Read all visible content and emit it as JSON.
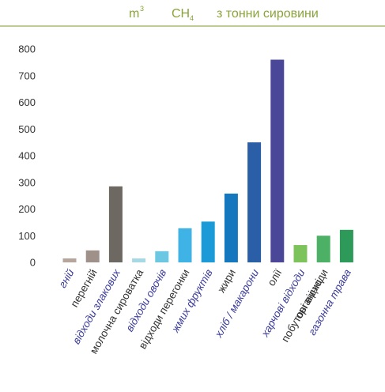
{
  "chart_data": {
    "type": "bar",
    "title": {
      "unit": "m",
      "unit_sup": "3",
      "gas": "CH",
      "gas_sub": "4",
      "text": "з тонни сировини"
    },
    "xlabel": "",
    "ylabel": "",
    "ylim": [
      0,
      800
    ],
    "yticks": [
      "800",
      "700",
      "600",
      "500",
      "400",
      "300",
      "200",
      "100",
      "0"
    ],
    "grid": false,
    "categories": [
      {
        "lines": [
          "гній"
        ],
        "value": 15,
        "color": "#b5a59b",
        "label_color": "#3b3b9a",
        "label_style": "italic"
      },
      {
        "lines": [
          "перегній"
        ],
        "value": 45,
        "color": "#9f918a",
        "label_color": "#333333",
        "label_style": "normal"
      },
      {
        "lines": [
          "відходи злакових"
        ],
        "value": 285,
        "color": "#6e6862",
        "label_color": "#3b3b9a",
        "label_style": "italic"
      },
      {
        "lines": [
          "молочна сироватка"
        ],
        "value": 15,
        "color": "#a7d8e6",
        "label_color": "#333333",
        "label_style": "normal"
      },
      {
        "lines": [
          "відходи овочів"
        ],
        "value": 42,
        "color": "#6cc8e2",
        "label_color": "#3b3b9a",
        "label_style": "italic"
      },
      {
        "lines": [
          "відходи перегонки"
        ],
        "value": 128,
        "color": "#3fb3e5",
        "label_color": "#333333",
        "label_style": "normal"
      },
      {
        "lines": [
          "жмих фруктів"
        ],
        "value": 153,
        "color": "#1a9bd7",
        "label_color": "#3b3b9a",
        "label_style": "italic"
      },
      {
        "lines": [
          "жири"
        ],
        "value": 258,
        "color": "#1577bd",
        "label_color": "#333333",
        "label_style": "normal"
      },
      {
        "lines": [
          "хліб / макарони"
        ],
        "value": 450,
        "color": "#2a5fa8",
        "label_color": "#3b3b9a",
        "label_style": "italic"
      },
      {
        "lines": [
          "олії"
        ],
        "value": 760,
        "color": "#4a4798",
        "label_color": "#333333",
        "label_style": "normal"
      },
      {
        "lines": [
          "харчові відходи"
        ],
        "value": 65,
        "color": "#7dc35b",
        "label_color": "#3b3b9a",
        "label_style": "italic"
      },
      {
        "lines": [
          "органічні",
          "побутові відходи"
        ],
        "value": 100,
        "color": "#4db165",
        "label_color": "#333333",
        "label_style": "normal"
      },
      {
        "lines": [
          "газонна трава"
        ],
        "value": 122,
        "color": "#2e9a5a",
        "label_color": "#3b3b9a",
        "label_style": "italic"
      }
    ]
  }
}
